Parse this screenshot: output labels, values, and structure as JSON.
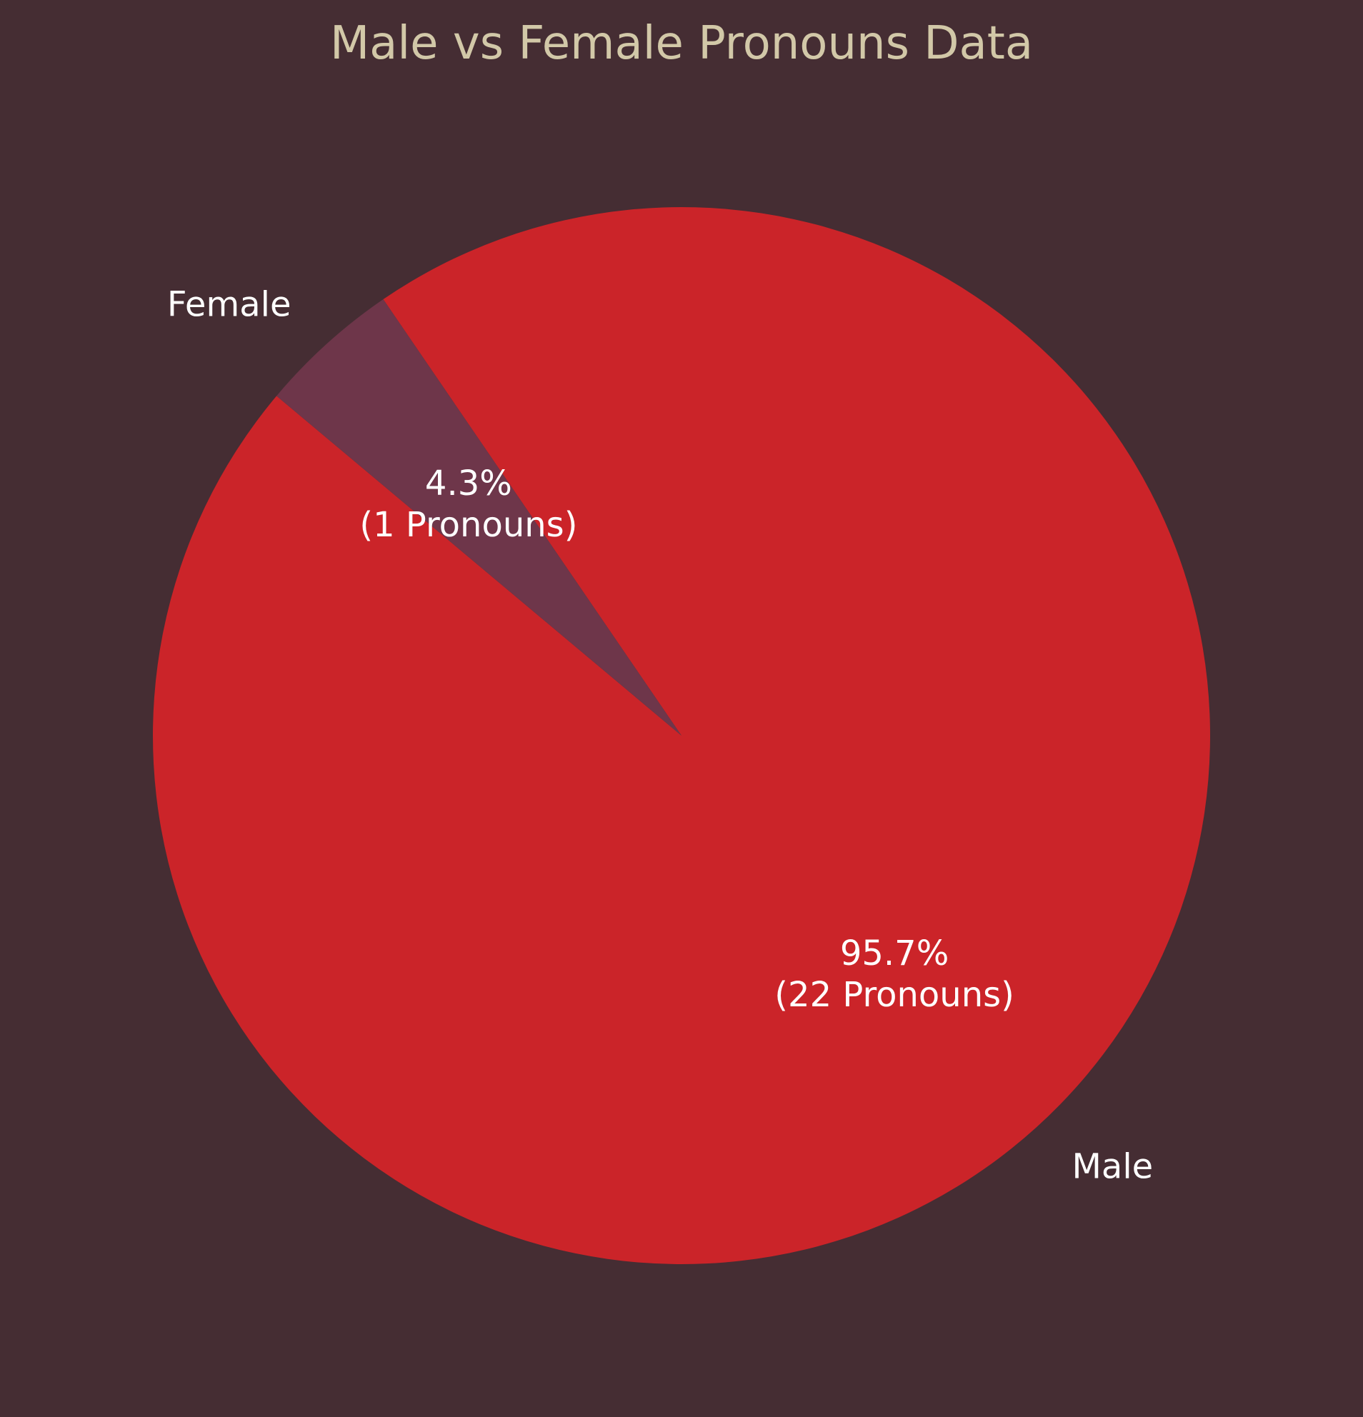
{
  "colors": {
    "background": "#452d33",
    "title": "#d2c8a8",
    "label_text": "#ffffff"
  },
  "chart_data": {
    "type": "pie",
    "title": "Male vs Female Pronouns Data",
    "slices": [
      {
        "name": "Male",
        "value": 22,
        "percent_label": "95.7%",
        "count_label": "(22 Pronouns)",
        "color": "#cb2429"
      },
      {
        "name": "Female",
        "value": 1,
        "percent_label": "4.3%",
        "count_label": "(1 Pronouns)",
        "color": "#6e364a"
      }
    ],
    "start_angle_deg": 140,
    "direction": "counterclockwise"
  }
}
